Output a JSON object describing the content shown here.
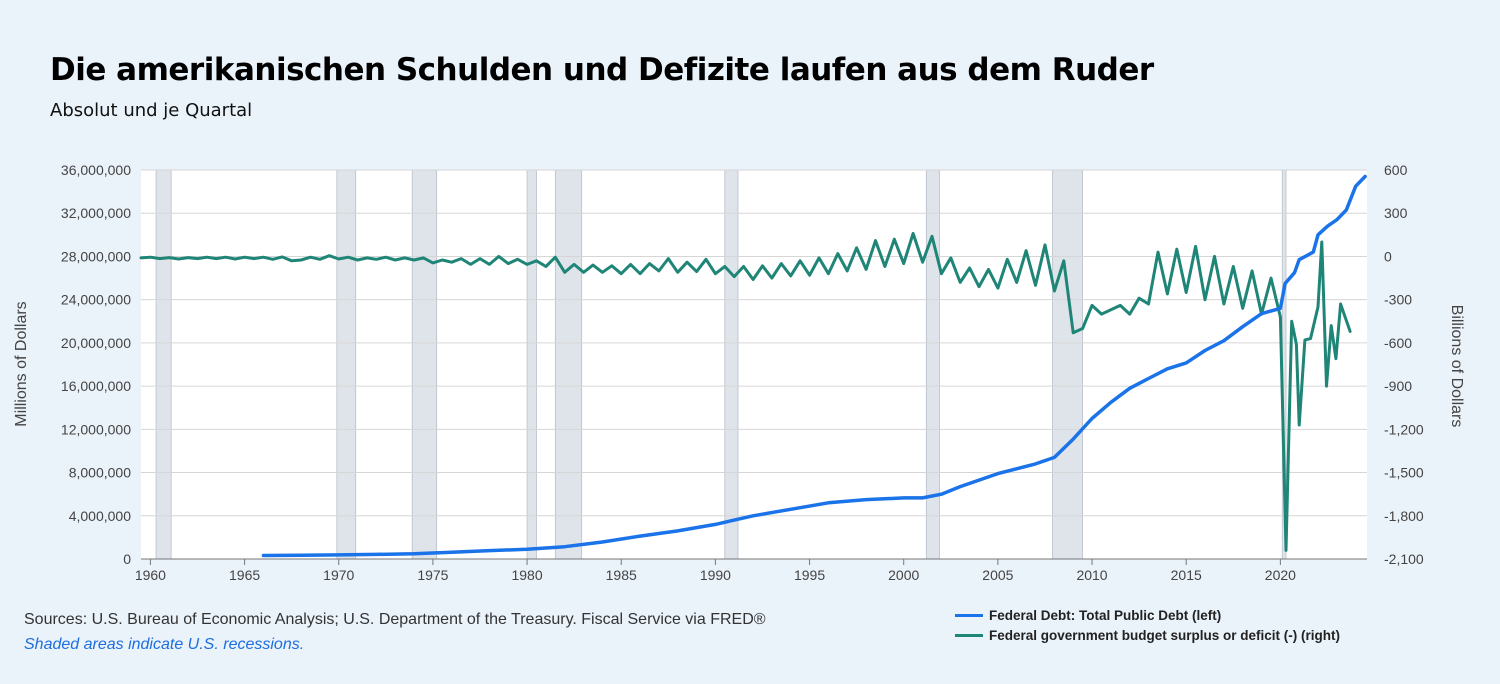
{
  "header": {
    "title": "Die amerikanischen Schulden und Defizite laufen aus dem Ruder",
    "subtitle": "Absolut und je Quartal"
  },
  "footer": {
    "source": "Sources: U.S. Bureau of Economic Analysis; U.S. Department of the Treasury. Fiscal Service via FRED®",
    "note": "Shaded areas indicate U.S. recessions."
  },
  "colors": {
    "debt": "#1a73e8",
    "deficit": "#1f8577",
    "recession": "#dfe4ea",
    "plot_bg": "#ffffff",
    "grid": "#d6d6d6"
  },
  "chart_data": {
    "type": "line",
    "title": "Die amerikanischen Schulden und Defizite laufen aus dem Ruder",
    "subtitle": "Absolut und je Quartal",
    "xlim": [
      1959.5,
      2024.6
    ],
    "x_ticks": [
      1960,
      1965,
      1970,
      1975,
      1980,
      1985,
      1990,
      1995,
      2000,
      2005,
      2010,
      2015,
      2020
    ],
    "left_axis": {
      "label": "Millions of Dollars",
      "ylim": [
        0,
        36000000
      ],
      "ticks": [
        0,
        4000000,
        8000000,
        12000000,
        16000000,
        20000000,
        24000000,
        28000000,
        32000000,
        36000000
      ],
      "tick_labels": [
        "0",
        "4,000,000",
        "8,000,000",
        "12,000,000",
        "16,000,000",
        "20,000,000",
        "24,000,000",
        "28,000,000",
        "32,000,000",
        "36,000,000"
      ]
    },
    "right_axis": {
      "label": "Billions of Dollars",
      "ylim": [
        -2100,
        600
      ],
      "ticks": [
        -2100,
        -1800,
        -1500,
        -1200,
        -900,
        -600,
        -300,
        0,
        300,
        600
      ],
      "tick_labels": [
        "-2,100",
        "-1,800",
        "-1,500",
        "-1,200",
        "-900",
        "-600",
        "-300",
        "0",
        "300",
        "600"
      ]
    },
    "recessions": [
      [
        1960.3,
        1961.1
      ],
      [
        1969.9,
        1970.9
      ],
      [
        1973.9,
        1975.2
      ],
      [
        1980.0,
        1980.5
      ],
      [
        1981.5,
        1982.9
      ],
      [
        1990.5,
        1991.2
      ],
      [
        2001.2,
        2001.9
      ],
      [
        2007.9,
        2009.5
      ],
      [
        2020.1,
        2020.3
      ]
    ],
    "series": [
      {
        "name": "Federal Debt: Total Public Debt (left)",
        "axis": "left",
        "points": [
          [
            1966.0,
            320000
          ],
          [
            1968.0,
            345000
          ],
          [
            1970.0,
            380000
          ],
          [
            1972.0,
            430000
          ],
          [
            1974.0,
            480000
          ],
          [
            1976.0,
            620000
          ],
          [
            1978.0,
            780000
          ],
          [
            1980.0,
            900000
          ],
          [
            1982.0,
            1140000
          ],
          [
            1984.0,
            1570000
          ],
          [
            1986.0,
            2120000
          ],
          [
            1988.0,
            2600000
          ],
          [
            1990.0,
            3200000
          ],
          [
            1991.0,
            3600000
          ],
          [
            1992.0,
            4000000
          ],
          [
            1994.0,
            4600000
          ],
          [
            1996.0,
            5200000
          ],
          [
            1998.0,
            5500000
          ],
          [
            2000.0,
            5650000
          ],
          [
            2001.0,
            5650000
          ],
          [
            2002.0,
            6000000
          ],
          [
            2003.0,
            6700000
          ],
          [
            2005.0,
            7900000
          ],
          [
            2007.0,
            8800000
          ],
          [
            2008.0,
            9400000
          ],
          [
            2009.0,
            11100000
          ],
          [
            2010.0,
            13000000
          ],
          [
            2011.0,
            14500000
          ],
          [
            2012.0,
            15800000
          ],
          [
            2013.0,
            16700000
          ],
          [
            2014.0,
            17600000
          ],
          [
            2015.0,
            18150000
          ],
          [
            2016.0,
            19300000
          ],
          [
            2017.0,
            20200000
          ],
          [
            2018.0,
            21500000
          ],
          [
            2019.0,
            22700000
          ],
          [
            2020.0,
            23200000
          ],
          [
            2020.25,
            25500000
          ],
          [
            2020.75,
            26500000
          ],
          [
            2021.0,
            27700000
          ],
          [
            2021.75,
            28400000
          ],
          [
            2022.0,
            30000000
          ],
          [
            2022.5,
            30800000
          ],
          [
            2023.0,
            31400000
          ],
          [
            2023.5,
            32300000
          ],
          [
            2024.0,
            34500000
          ],
          [
            2024.5,
            35400000
          ]
        ]
      },
      {
        "name": "Federal government budget surplus or deficit (-) (right)",
        "axis": "right",
        "points": [
          [
            1959.5,
            -10
          ],
          [
            1960.0,
            -5
          ],
          [
            1960.5,
            -15
          ],
          [
            1961.0,
            -8
          ],
          [
            1961.5,
            -18
          ],
          [
            1962.0,
            -8
          ],
          [
            1962.5,
            -15
          ],
          [
            1963.0,
            -5
          ],
          [
            1963.5,
            -15
          ],
          [
            1964.0,
            -5
          ],
          [
            1964.5,
            -18
          ],
          [
            1965.0,
            -5
          ],
          [
            1965.5,
            -15
          ],
          [
            1966.0,
            -5
          ],
          [
            1966.5,
            -20
          ],
          [
            1967.0,
            -3
          ],
          [
            1967.5,
            -30
          ],
          [
            1968.0,
            -25
          ],
          [
            1968.5,
            -5
          ],
          [
            1969.0,
            -20
          ],
          [
            1969.5,
            5
          ],
          [
            1970.0,
            -18
          ],
          [
            1970.5,
            -5
          ],
          [
            1971.0,
            -25
          ],
          [
            1971.5,
            -10
          ],
          [
            1972.0,
            -20
          ],
          [
            1972.5,
            -5
          ],
          [
            1973.0,
            -25
          ],
          [
            1973.5,
            -10
          ],
          [
            1974.0,
            -25
          ],
          [
            1974.5,
            -10
          ],
          [
            1975.0,
            -45
          ],
          [
            1975.5,
            -25
          ],
          [
            1976.0,
            -40
          ],
          [
            1976.5,
            -15
          ],
          [
            1977.0,
            -55
          ],
          [
            1977.5,
            -15
          ],
          [
            1978.0,
            -55
          ],
          [
            1978.5,
            0
          ],
          [
            1979.0,
            -50
          ],
          [
            1979.5,
            -20
          ],
          [
            1980.0,
            -55
          ],
          [
            1980.5,
            -30
          ],
          [
            1981.0,
            -70
          ],
          [
            1981.5,
            -5
          ],
          [
            1982.0,
            -110
          ],
          [
            1982.5,
            -55
          ],
          [
            1983.0,
            -110
          ],
          [
            1983.5,
            -60
          ],
          [
            1984.0,
            -110
          ],
          [
            1984.5,
            -65
          ],
          [
            1985.0,
            -120
          ],
          [
            1985.5,
            -55
          ],
          [
            1986.0,
            -120
          ],
          [
            1986.5,
            -50
          ],
          [
            1987.0,
            -100
          ],
          [
            1987.5,
            -15
          ],
          [
            1988.0,
            -110
          ],
          [
            1988.5,
            -40
          ],
          [
            1989.0,
            -105
          ],
          [
            1989.5,
            -20
          ],
          [
            1990.0,
            -120
          ],
          [
            1990.5,
            -70
          ],
          [
            1991.0,
            -140
          ],
          [
            1991.5,
            -70
          ],
          [
            1992.0,
            -160
          ],
          [
            1992.5,
            -65
          ],
          [
            1993.0,
            -150
          ],
          [
            1993.5,
            -50
          ],
          [
            1994.0,
            -135
          ],
          [
            1994.5,
            -30
          ],
          [
            1995.0,
            -130
          ],
          [
            1995.5,
            -10
          ],
          [
            1996.0,
            -120
          ],
          [
            1996.5,
            20
          ],
          [
            1997.0,
            -100
          ],
          [
            1997.5,
            60
          ],
          [
            1998.0,
            -90
          ],
          [
            1998.5,
            110
          ],
          [
            1999.0,
            -70
          ],
          [
            1999.5,
            120
          ],
          [
            2000.0,
            -50
          ],
          [
            2000.5,
            160
          ],
          [
            2001.0,
            -40
          ],
          [
            2001.5,
            140
          ],
          [
            2002.0,
            -120
          ],
          [
            2002.5,
            -10
          ],
          [
            2003.0,
            -180
          ],
          [
            2003.5,
            -80
          ],
          [
            2004.0,
            -210
          ],
          [
            2004.5,
            -90
          ],
          [
            2005.0,
            -220
          ],
          [
            2005.5,
            -20
          ],
          [
            2006.0,
            -180
          ],
          [
            2006.5,
            40
          ],
          [
            2007.0,
            -200
          ],
          [
            2007.5,
            80
          ],
          [
            2008.0,
            -240
          ],
          [
            2008.5,
            -30
          ],
          [
            2009.0,
            -530
          ],
          [
            2009.5,
            -500
          ],
          [
            2010.0,
            -340
          ],
          [
            2010.5,
            -400
          ],
          [
            2011.0,
            -370
          ],
          [
            2011.5,
            -340
          ],
          [
            2012.0,
            -400
          ],
          [
            2012.5,
            -290
          ],
          [
            2013.0,
            -330
          ],
          [
            2013.5,
            30
          ],
          [
            2014.0,
            -260
          ],
          [
            2014.5,
            50
          ],
          [
            2015.0,
            -250
          ],
          [
            2015.5,
            70
          ],
          [
            2016.0,
            -300
          ],
          [
            2016.5,
            0
          ],
          [
            2017.0,
            -330
          ],
          [
            2017.5,
            -70
          ],
          [
            2018.0,
            -360
          ],
          [
            2018.5,
            -100
          ],
          [
            2019.0,
            -400
          ],
          [
            2019.5,
            -150
          ],
          [
            2020.0,
            -420
          ],
          [
            2020.3,
            -2040
          ],
          [
            2020.6,
            -450
          ],
          [
            2020.85,
            -610
          ],
          [
            2021.0,
            -1170
          ],
          [
            2021.3,
            -580
          ],
          [
            2021.6,
            -570
          ],
          [
            2022.0,
            -350
          ],
          [
            2022.2,
            100
          ],
          [
            2022.45,
            -900
          ],
          [
            2022.7,
            -480
          ],
          [
            2022.95,
            -710
          ],
          [
            2023.2,
            -330
          ],
          [
            2023.7,
            -520
          ]
        ]
      }
    ],
    "legend": "bottom-right"
  }
}
